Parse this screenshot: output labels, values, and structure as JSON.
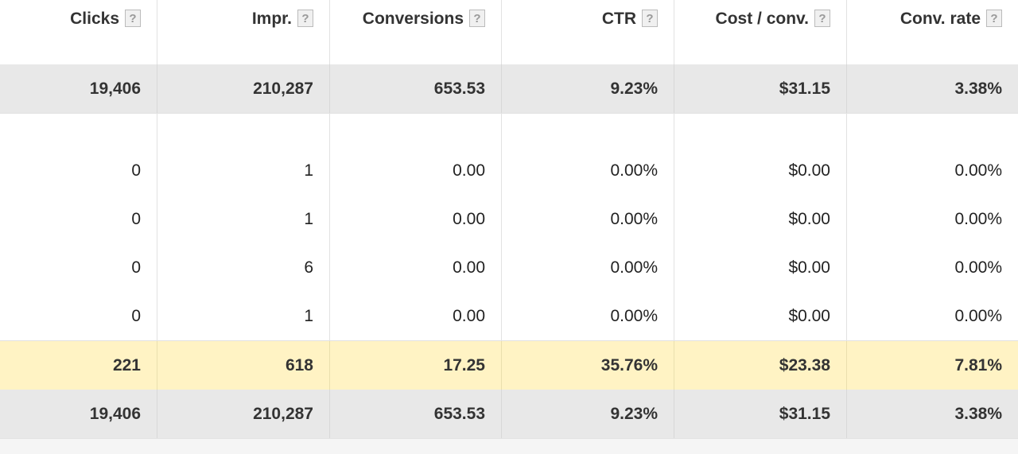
{
  "header": {
    "columns": [
      "Clicks",
      "Impr.",
      "Conversions",
      "CTR",
      "Cost / conv.",
      "Conv. rate"
    ],
    "help_icon": "?"
  },
  "summary": [
    "19,406",
    "210,287",
    "653.53",
    "9.23%",
    "$31.15",
    "3.38%"
  ],
  "rows": [
    [
      "0",
      "1",
      "0.00",
      "0.00%",
      "$0.00",
      "0.00%"
    ],
    [
      "0",
      "1",
      "0.00",
      "0.00%",
      "$0.00",
      "0.00%"
    ],
    [
      "0",
      "6",
      "0.00",
      "0.00%",
      "$0.00",
      "0.00%"
    ],
    [
      "0",
      "1",
      "0.00",
      "0.00%",
      "$0.00",
      "0.00%"
    ]
  ],
  "highlight": [
    "221",
    "618",
    "17.25",
    "35.76%",
    "$23.38",
    "7.81%"
  ],
  "total": [
    "19,406",
    "210,287",
    "653.53",
    "9.23%",
    "$31.15",
    "3.38%"
  ]
}
